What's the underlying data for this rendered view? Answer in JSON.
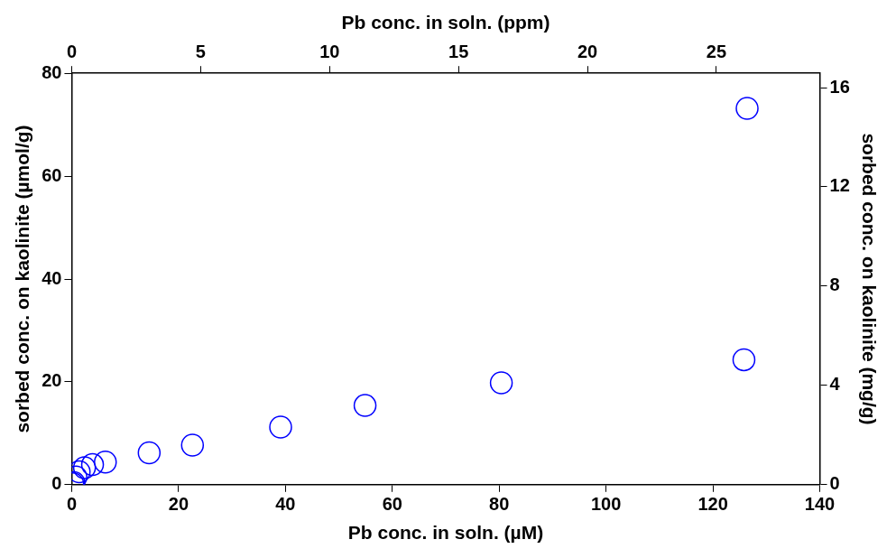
{
  "chart_data": {
    "type": "scatter",
    "x_label": "Pb conc. in soln. (µM)",
    "x2_label": "Pb conc. in soln. (ppm)",
    "y_label": "sorbed conc. on kaolinite (µmol/g)",
    "y2_label": "sorbed conc. on kaolinite (mg/g)",
    "xlim": [
      0,
      140
    ],
    "xticks": [
      0,
      20,
      40,
      60,
      80,
      100,
      120,
      140
    ],
    "x2lim": [
      0,
      29.008
    ],
    "x2ticks": [
      0,
      5,
      10,
      15,
      20,
      25
    ],
    "ylim": [
      0,
      80
    ],
    "yticks": [
      0,
      20,
      40,
      60,
      80
    ],
    "y2lim": [
      0,
      16.576
    ],
    "y2ticks": [
      0,
      4,
      8,
      12,
      16
    ],
    "grid": false,
    "series": [
      {
        "name": "Pb",
        "color": "#0000ff",
        "marker": "circle",
        "x": [
          0.2,
          0.4,
          0.8,
          1.4,
          2.4,
          3.9,
          6.3,
          14.5,
          22.6,
          39.1,
          54.9,
          80.4,
          125.8,
          126.4
        ],
        "values": [
          0.2,
          0.4,
          1.5,
          2.5,
          3.3,
          3.9,
          4.4,
          6.2,
          7.7,
          11.2,
          15.4,
          19.8,
          24.3,
          73.2
        ]
      }
    ]
  }
}
